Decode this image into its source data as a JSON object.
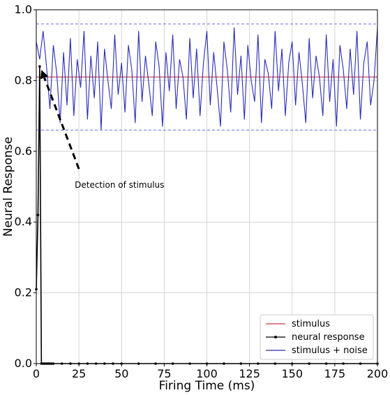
{
  "chart_data": {
    "type": "line",
    "xlabel": "Firing Time (ms)",
    "ylabel": "Neural Response",
    "xlim": [
      0,
      200
    ],
    "ylim": [
      0,
      1.0
    ],
    "xticks": [
      0,
      25,
      50,
      75,
      100,
      125,
      150,
      175,
      200
    ],
    "yticks": [
      0.0,
      0.2,
      0.4,
      0.6,
      0.8,
      1.0
    ],
    "xtick_labels": [
      "0",
      "25",
      "50",
      "75",
      "100",
      "125",
      "150",
      "175",
      "200"
    ],
    "ytick_labels": [
      "0.0",
      "0.2",
      "0.4",
      "0.6",
      "0.8",
      "1.0"
    ],
    "grid": true,
    "legend": "lower-right",
    "colors": {
      "stimulus": "#cc3344",
      "neural_response": "#000000",
      "stimulus_noise": "#2b2bb5",
      "bounds": "#6b6bf0"
    },
    "series": [
      {
        "name": "stimulus",
        "style": "solid",
        "x": [
          0,
          200
        ],
        "y": [
          0.81,
          0.81
        ]
      },
      {
        "name": "neural response",
        "style": "solid-markers",
        "x": [
          0,
          1,
          2,
          3,
          4,
          5,
          6,
          7,
          8,
          9,
          10,
          15,
          20,
          25,
          30,
          35,
          40,
          45,
          50,
          60,
          70,
          80,
          90,
          100,
          110,
          120,
          130,
          140,
          150,
          160,
          170,
          180,
          190,
          200
        ],
        "y": [
          0.21,
          0.42,
          0.84,
          0.0,
          0.0,
          0.0,
          0.0,
          0.0,
          0.0,
          0.0,
          0.0,
          0.0,
          0.0,
          0.0,
          0.0,
          0.0,
          0.0,
          0.0,
          0.0,
          0.0,
          0.0,
          0.0,
          0.0,
          0.0,
          0.0,
          0.0,
          0.0,
          0.0,
          0.0,
          0.0,
          0.0,
          0.0,
          0.0,
          0.0
        ]
      },
      {
        "name": "stimulus + noise",
        "style": "solid",
        "x": [
          0,
          2,
          4,
          6,
          8,
          10,
          12,
          14,
          16,
          18,
          20,
          22,
          24,
          26,
          28,
          30,
          32,
          34,
          36,
          38,
          40,
          42,
          44,
          46,
          48,
          50,
          52,
          54,
          56,
          58,
          60,
          62,
          64,
          66,
          68,
          70,
          72,
          74,
          76,
          78,
          80,
          82,
          84,
          86,
          88,
          90,
          92,
          94,
          96,
          98,
          100,
          102,
          104,
          106,
          108,
          110,
          112,
          114,
          116,
          118,
          120,
          122,
          124,
          126,
          128,
          130,
          132,
          134,
          136,
          138,
          140,
          142,
          144,
          146,
          148,
          150,
          152,
          154,
          156,
          158,
          160,
          162,
          164,
          166,
          168,
          170,
          172,
          174,
          176,
          178,
          180,
          182,
          184,
          186,
          188,
          190,
          192,
          194,
          196,
          198,
          200
        ],
        "y": [
          0.91,
          0.86,
          0.94,
          0.84,
          0.72,
          0.9,
          0.82,
          0.68,
          0.88,
          0.73,
          0.92,
          0.7,
          0.86,
          0.78,
          0.94,
          0.69,
          0.87,
          0.75,
          0.91,
          0.66,
          0.89,
          0.8,
          0.72,
          0.93,
          0.76,
          0.85,
          0.71,
          0.9,
          0.83,
          0.68,
          0.94,
          0.74,
          0.87,
          0.79,
          0.7,
          0.91,
          0.84,
          0.67,
          0.88,
          0.77,
          0.93,
          0.72,
          0.86,
          0.81,
          0.69,
          0.92,
          0.75,
          0.89,
          0.7,
          0.85,
          0.94,
          0.73,
          0.88,
          0.78,
          0.67,
          0.91,
          0.83,
          0.71,
          0.95,
          0.76,
          0.87,
          0.69,
          0.9,
          0.8,
          0.74,
          0.93,
          0.68,
          0.86,
          0.82,
          0.72,
          0.94,
          0.77,
          0.89,
          0.7,
          0.85,
          0.91,
          0.73,
          0.88,
          0.79,
          0.68,
          0.92,
          0.75,
          0.87,
          0.81,
          0.7,
          0.93,
          0.74,
          0.86,
          0.67,
          0.9,
          0.83,
          0.72,
          0.89,
          0.76,
          0.94,
          0.69,
          0.85,
          0.91,
          0.73,
          0.8,
          0.95
        ]
      },
      {
        "name": "",
        "style": "dashed",
        "x": [
          0,
          200
        ],
        "y": [
          0.96,
          0.96
        ]
      },
      {
        "name": "",
        "style": "dashed",
        "x": [
          0,
          200
        ],
        "y": [
          0.66,
          0.66
        ]
      }
    ],
    "annotations": [
      {
        "text": "Detection of stimulus",
        "arrow_from": [
          25,
          0.55
        ],
        "arrow_to": [
          3,
          0.83
        ]
      }
    ]
  }
}
